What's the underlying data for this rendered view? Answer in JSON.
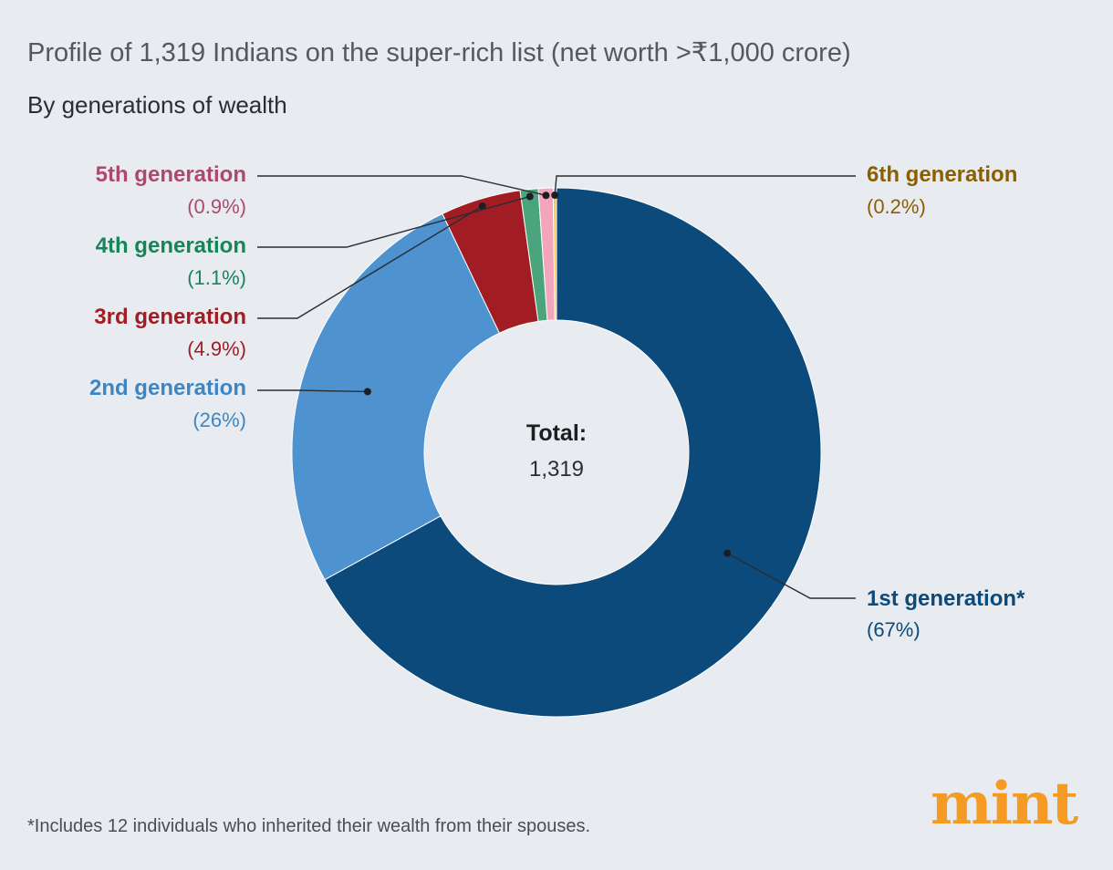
{
  "title": "Profile of 1,319 Indians on the super-rich list (net worth >₹1,000 crore)",
  "subtitle": "By generations of wealth",
  "footnote": "*Includes 12 individuals who inherited their wealth from their spouses.",
  "logo": "mint",
  "chart_data": {
    "type": "pie",
    "donut": true,
    "center_label": "Total:",
    "center_value": "1,319",
    "slices": [
      {
        "name": "1st generation*",
        "percent_label": "(67%)",
        "value": 67.0,
        "color": "#0b4a7a"
      },
      {
        "name": "2nd generation",
        "percent_label": "(26%)",
        "value": 25.9,
        "color": "#4e93d0"
      },
      {
        "name": "3rd generation",
        "percent_label": "(4.9%)",
        "value": 4.9,
        "color": "#a21d23"
      },
      {
        "name": "4th generation",
        "percent_label": "(1.1%)",
        "value": 1.1,
        "color": "#4aa57c"
      },
      {
        "name": "5th generation",
        "percent_label": "(0.9%)",
        "value": 0.9,
        "color": "#f2a5bd"
      },
      {
        "name": "6th generation",
        "percent_label": "(0.2%)",
        "value": 0.2,
        "color": "#f0c75a"
      }
    ],
    "label_colors": {
      "1st generation*": "#0b4a7a",
      "2nd generation": "#3d86c6",
      "3rd generation": "#a21d23",
      "4th generation": "#17855a",
      "5th generation": "#ad4a6c",
      "6th generation": "#8a5f00"
    }
  }
}
